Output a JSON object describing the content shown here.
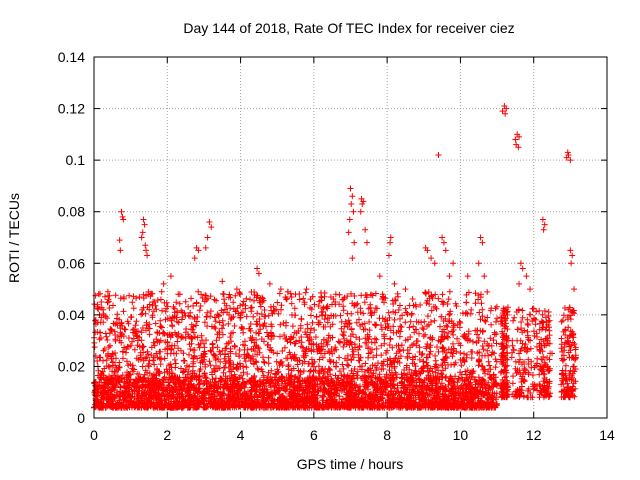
{
  "chart_data": {
    "type": "scatter",
    "title": "Day 144 of 2018, Rate Of TEC Index for receiver ciez",
    "xlabel": "GPS time / hours",
    "ylabel": "ROTI / TECUs",
    "xlim": [
      0,
      14
    ],
    "ylim": [
      0,
      0.14
    ],
    "x_ticks": [
      0,
      2,
      4,
      6,
      8,
      10,
      12,
      14
    ],
    "y_ticks": [
      0,
      0.02,
      0.04,
      0.06,
      0.08,
      0.1,
      0.12,
      0.14
    ],
    "x_tick_labels": [
      "0",
      "2",
      "4",
      "6",
      "8",
      "10",
      "12",
      "14"
    ],
    "y_tick_labels": [
      "0",
      "0.02",
      "0.04",
      "0.06",
      "0.08",
      "0.1",
      "0.12",
      "0.14"
    ],
    "grid": true,
    "marker": "+",
    "color": "#ff0000",
    "series": [
      {
        "name": "ROTI",
        "points": [
          [
            0.05,
            0.038
          ],
          [
            0.1,
            0.037
          ],
          [
            0.15,
            0.04
          ],
          [
            0.2,
            0.045
          ],
          [
            0.3,
            0.047
          ],
          [
            0.25,
            0.042
          ],
          [
            0.75,
            0.08
          ],
          [
            0.78,
            0.078
          ],
          [
            0.7,
            0.069
          ],
          [
            0.72,
            0.065
          ],
          [
            0.8,
            0.077
          ],
          [
            1.35,
            0.077
          ],
          [
            1.38,
            0.075
          ],
          [
            1.33,
            0.072
          ],
          [
            1.3,
            0.07
          ],
          [
            1.42,
            0.065
          ],
          [
            1.45,
            0.063
          ],
          [
            1.4,
            0.067
          ],
          [
            1.9,
            0.052
          ],
          [
            2.1,
            0.055
          ],
          [
            2.3,
            0.048
          ],
          [
            2.8,
            0.066
          ],
          [
            2.85,
            0.065
          ],
          [
            2.75,
            0.062
          ],
          [
            3.15,
            0.076
          ],
          [
            3.2,
            0.074
          ],
          [
            3.1,
            0.07
          ],
          [
            3.05,
            0.066
          ],
          [
            3.5,
            0.053
          ],
          [
            3.9,
            0.05
          ],
          [
            4.45,
            0.058
          ],
          [
            4.5,
            0.056
          ],
          [
            4.8,
            0.052
          ],
          [
            5.1,
            0.05
          ],
          [
            5.5,
            0.048
          ],
          [
            5.8,
            0.05
          ],
          [
            6.2,
            0.047
          ],
          [
            6.6,
            0.048
          ],
          [
            7.0,
            0.089
          ],
          [
            7.05,
            0.086
          ],
          [
            7.02,
            0.083
          ],
          [
            7.08,
            0.08
          ],
          [
            6.98,
            0.077
          ],
          [
            6.95,
            0.072
          ],
          [
            7.1,
            0.068
          ],
          [
            7.05,
            0.062
          ],
          [
            7.3,
            0.085
          ],
          [
            7.35,
            0.084
          ],
          [
            7.32,
            0.083
          ],
          [
            7.28,
            0.08
          ],
          [
            7.4,
            0.073
          ],
          [
            7.45,
            0.068
          ],
          [
            7.8,
            0.055
          ],
          [
            8.1,
            0.07
          ],
          [
            8.08,
            0.068
          ],
          [
            8.05,
            0.063
          ],
          [
            8.2,
            0.052
          ],
          [
            8.5,
            0.05
          ],
          [
            9.05,
            0.066
          ],
          [
            9.1,
            0.065
          ],
          [
            9.2,
            0.062
          ],
          [
            9.3,
            0.06
          ],
          [
            9.4,
            0.102
          ],
          [
            9.5,
            0.07
          ],
          [
            9.55,
            0.068
          ],
          [
            9.6,
            0.065
          ],
          [
            9.7,
            0.055
          ],
          [
            9.8,
            0.06
          ],
          [
            10.2,
            0.055
          ],
          [
            10.5,
            0.06
          ],
          [
            10.55,
            0.07
          ],
          [
            10.6,
            0.068
          ],
          [
            10.65,
            0.055
          ],
          [
            11.2,
            0.121
          ],
          [
            11.25,
            0.12
          ],
          [
            11.22,
            0.118
          ],
          [
            11.15,
            0.119
          ],
          [
            11.55,
            0.11
          ],
          [
            11.6,
            0.109
          ],
          [
            11.52,
            0.106
          ],
          [
            11.58,
            0.105
          ],
          [
            11.5,
            0.108
          ],
          [
            11.65,
            0.06
          ],
          [
            11.7,
            0.058
          ],
          [
            11.6,
            0.052
          ],
          [
            11.8,
            0.055
          ],
          [
            11.9,
            0.05
          ],
          [
            12.25,
            0.077
          ],
          [
            12.3,
            0.075
          ],
          [
            12.27,
            0.073
          ],
          [
            12.9,
            0.101
          ],
          [
            12.95,
            0.102
          ],
          [
            13.0,
            0.1
          ],
          [
            12.93,
            0.103
          ],
          [
            13.0,
            0.065
          ],
          [
            13.05,
            0.063
          ],
          [
            13.02,
            0.06
          ],
          [
            13.1,
            0.05
          ],
          [
            0.1,
            0.012
          ],
          [
            0.2,
            0.015
          ],
          [
            0.3,
            0.01
          ],
          [
            0.4,
            0.02
          ],
          [
            0.5,
            0.025
          ],
          [
            0.6,
            0.018
          ],
          [
            0.7,
            0.03
          ],
          [
            0.9,
            0.022
          ],
          [
            1.0,
            0.015
          ],
          [
            1.2,
            0.03
          ],
          [
            1.5,
            0.02
          ],
          [
            1.7,
            0.025
          ],
          [
            2.0,
            0.018
          ],
          [
            2.2,
            0.028
          ],
          [
            2.5,
            0.015
          ],
          [
            2.7,
            0.02
          ],
          [
            3.0,
            0.025
          ],
          [
            3.3,
            0.018
          ],
          [
            3.6,
            0.022
          ],
          [
            4.0,
            0.02
          ],
          [
            4.3,
            0.03
          ],
          [
            4.6,
            0.018
          ],
          [
            5.0,
            0.025
          ],
          [
            5.3,
            0.02
          ],
          [
            5.6,
            0.03
          ],
          [
            6.0,
            0.015
          ],
          [
            6.3,
            0.025
          ],
          [
            6.6,
            0.02
          ],
          [
            6.9,
            0.03
          ],
          [
            7.2,
            0.018
          ],
          [
            7.5,
            0.025
          ],
          [
            7.8,
            0.015
          ],
          [
            8.2,
            0.02
          ],
          [
            8.6,
            0.025
          ],
          [
            9.0,
            0.02
          ],
          [
            9.4,
            0.03
          ],
          [
            9.8,
            0.025
          ],
          [
            10.2,
            0.03
          ],
          [
            10.6,
            0.02
          ],
          [
            10.9,
            0.015
          ],
          [
            11.3,
            0.03
          ],
          [
            11.6,
            0.025
          ],
          [
            11.9,
            0.03
          ],
          [
            12.2,
            0.02
          ],
          [
            12.5,
            0.025
          ],
          [
            12.9,
            0.015
          ],
          [
            13.1,
            0.02
          ]
        ]
      }
    ]
  }
}
